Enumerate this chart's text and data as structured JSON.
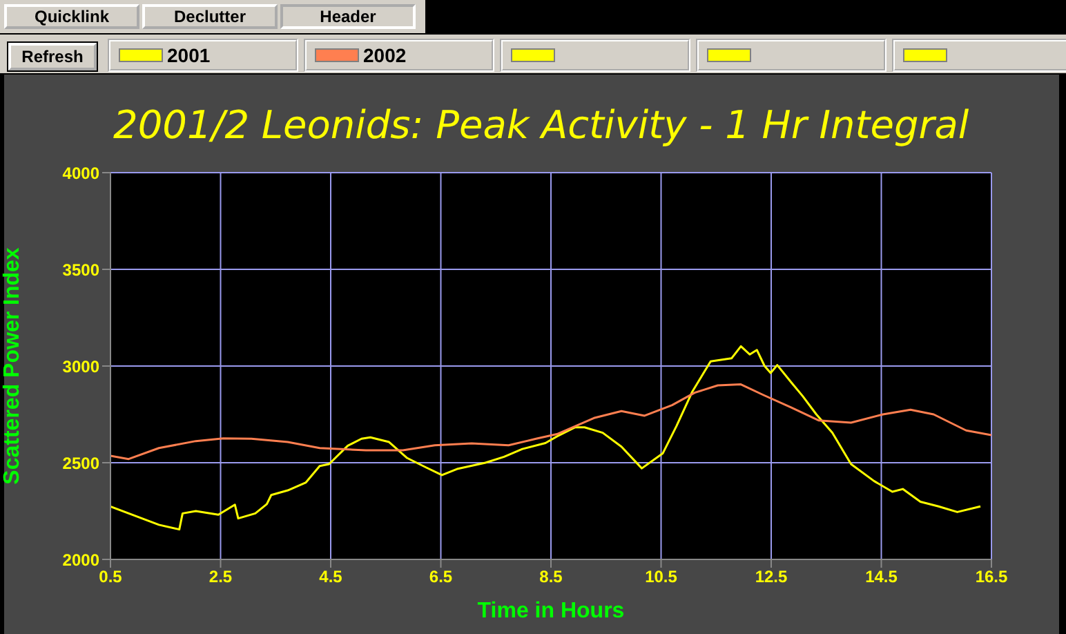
{
  "chart_data": {
    "type": "line",
    "title": "2001/2 Leonids: Peak Activity - 1 Hr Integral",
    "xlabel": "Time in Hours",
    "ylabel": "Scattered Power Index",
    "annotations": [
      "Quicklink",
      "Declutter",
      "Header",
      "Refresh"
    ],
    "xlim": [
      0.5,
      16.5
    ],
    "xticks": [
      0.5,
      2.5,
      4.5,
      6.5,
      8.5,
      10.5,
      12.5,
      14.5,
      16.5
    ],
    "ylim": [
      2000,
      4000
    ],
    "yticks": [
      2000,
      2500,
      3000,
      3500,
      4000
    ],
    "grid": true,
    "legend": "top",
    "marker": "none",
    "line_style": "solid",
    "series": [
      {
        "name": "2001",
        "color": "#ffff00",
        "x": [
          0.5,
          1.38,
          1.75,
          1.81,
          2.05,
          2.46,
          2.76,
          2.82,
          3.13,
          3.34,
          3.42,
          3.72,
          4.05,
          4.3,
          4.47,
          4.81,
          5.06,
          5.22,
          5.56,
          5.89,
          6.23,
          6.52,
          6.81,
          7.31,
          7.65,
          7.98,
          8.4,
          8.61,
          8.94,
          9.11,
          9.44,
          9.78,
          10.15,
          10.53,
          10.78,
          11.07,
          11.4,
          11.78,
          11.95,
          12.11,
          12.24,
          12.38,
          12.49,
          12.61,
          12.86,
          13.07,
          13.32,
          13.61,
          13.95,
          14.37,
          14.7,
          14.89,
          15.21,
          15.54,
          15.88,
          16.3
        ],
        "values": [
          2274,
          2179,
          2155,
          2238,
          2250,
          2231,
          2283,
          2212,
          2238,
          2286,
          2333,
          2357,
          2398,
          2483,
          2493,
          2588,
          2624,
          2631,
          2607,
          2524,
          2476,
          2436,
          2469,
          2500,
          2531,
          2571,
          2602,
          2636,
          2683,
          2683,
          2655,
          2583,
          2471,
          2548,
          2690,
          2869,
          3024,
          3040,
          3102,
          3060,
          3083,
          3000,
          2964,
          3005,
          2917,
          2845,
          2750,
          2655,
          2493,
          2405,
          2350,
          2364,
          2298,
          2274,
          2245,
          2274
        ]
      },
      {
        "name": "2002",
        "color": "#ff7f50",
        "x": [
          0.5,
          0.83,
          1.38,
          2.05,
          2.55,
          3.06,
          3.72,
          4.3,
          5.14,
          5.81,
          6.39,
          7.06,
          7.73,
          8.23,
          8.61,
          9.28,
          9.78,
          10.2,
          10.7,
          11.11,
          11.53,
          11.95,
          12.36,
          12.86,
          13.36,
          13.95,
          14.53,
          15.03,
          15.45,
          16.04,
          16.5
        ],
        "values": [
          2536,
          2519,
          2576,
          2612,
          2626,
          2624,
          2607,
          2576,
          2564,
          2564,
          2590,
          2600,
          2590,
          2624,
          2648,
          2731,
          2767,
          2743,
          2798,
          2862,
          2900,
          2905,
          2850,
          2786,
          2719,
          2707,
          2750,
          2774,
          2750,
          2667,
          2643
        ]
      },
      {
        "color": "#ffff00"
      },
      {
        "color": "#ffff00"
      },
      {
        "color": "#ffff00"
      }
    ]
  }
}
